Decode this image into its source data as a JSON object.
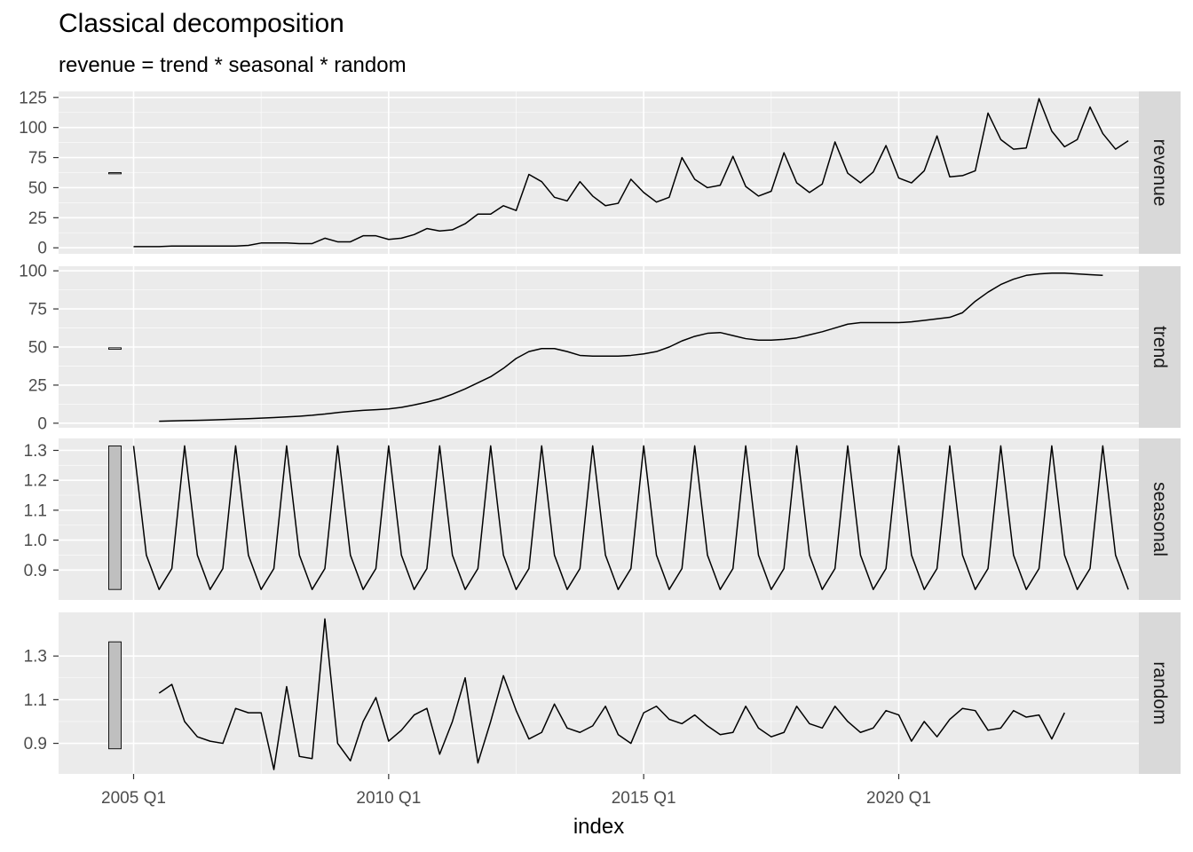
{
  "title": "Classical decomposition",
  "subtitle": "revenue = trend * seasonal * random",
  "chart_data": {
    "type": "line",
    "title": "Classical decomposition",
    "subtitle": "revenue = trend * seasonal * random",
    "xlabel": "index",
    "x_ticks": [
      "2005 Q1",
      "2010 Q1",
      "2015 Q1",
      "2020 Q1"
    ],
    "x_tick_values": [
      2005.0,
      2010.0,
      2015.0,
      2020.0
    ],
    "xlim": [
      2003.6,
      2025.2
    ],
    "x_start": 2005.0,
    "x_step": 0.25,
    "colors": {
      "line": "#000000",
      "panel": "#ebebeb",
      "strip": "#d9d9d9",
      "grid": "#ffffff",
      "range_bar": "#bfbfbf"
    },
    "panels": [
      {
        "name": "revenue",
        "ylim": [
          -5,
          130
        ],
        "y_ticks": [
          0,
          25,
          50,
          75,
          100,
          125
        ],
        "range_bar": [
          61.5,
          62.5
        ],
        "values": [
          1,
          1,
          1,
          1.5,
          1.5,
          1.5,
          1.5,
          1.5,
          1.5,
          2,
          4,
          4,
          4,
          3.5,
          3.5,
          8,
          5,
          5,
          10,
          10,
          7,
          8,
          11,
          16,
          14,
          15,
          20,
          28,
          28,
          35,
          31,
          61,
          55,
          42,
          39,
          55,
          43,
          35,
          37,
          57,
          46,
          38,
          42,
          75,
          57,
          50,
          52,
          76,
          51,
          43,
          47,
          79,
          54,
          46,
          53,
          88,
          62,
          54,
          63,
          85,
          58,
          54,
          64,
          93,
          59,
          60,
          64,
          112,
          90,
          82,
          83,
          124,
          97,
          84,
          90,
          117,
          95,
          82,
          89
        ]
      },
      {
        "name": "trend",
        "ylim": [
          -3,
          103
        ],
        "y_ticks": [
          0,
          25,
          50,
          75,
          100
        ],
        "range_bar": [
          48.5,
          49.5
        ],
        "values": [
          null,
          null,
          1.3,
          1.5,
          1.7,
          1.9,
          2.1,
          2.4,
          2.7,
          3.0,
          3.3,
          3.7,
          4.1,
          4.6,
          5.2,
          6.0,
          7.0,
          7.8,
          8.4,
          8.9,
          9.4,
          10.4,
          12.0,
          13.8,
          16.0,
          19.0,
          22.5,
          26.5,
          30.5,
          36.0,
          42.5,
          47.0,
          49.0,
          49.0,
          47.0,
          44.5,
          44.0,
          44.0,
          44.0,
          44.5,
          45.5,
          47.0,
          50.0,
          54.0,
          57.0,
          59.0,
          59.5,
          57.5,
          55.5,
          54.5,
          54.5,
          55.0,
          56.0,
          58.0,
          60.0,
          62.5,
          65.0,
          66.0,
          66.0,
          66.0,
          66.0,
          66.5,
          67.5,
          68.5,
          69.5,
          72.5,
          80.0,
          86.0,
          91.0,
          94.5,
          97.0,
          98.0,
          98.5,
          98.5,
          98.0,
          97.5,
          97.0,
          null,
          null
        ]
      },
      {
        "name": "seasonal",
        "ylim": [
          0.8,
          1.34
        ],
        "y_ticks": [
          0.9,
          1.0,
          1.1,
          1.2,
          1.3
        ],
        "y_tick_labels": [
          "0.9",
          "1.0",
          "1.1",
          "1.2",
          "1.3"
        ],
        "range_bar": [
          0.835,
          1.315
        ],
        "pattern": [
          1.315,
          0.95,
          0.835,
          0.905
        ],
        "n": 79
      },
      {
        "name": "random",
        "ylim": [
          0.76,
          1.5
        ],
        "y_ticks": [
          0.9,
          1.1,
          1.3
        ],
        "y_tick_labels": [
          "0.9",
          "1.1",
          "1.3"
        ],
        "range_bar": [
          0.875,
          1.365
        ],
        "values": [
          null,
          null,
          1.13,
          1.17,
          1.0,
          0.93,
          0.91,
          0.9,
          1.06,
          1.04,
          1.04,
          0.78,
          1.16,
          0.84,
          0.83,
          1.47,
          0.9,
          0.82,
          1.0,
          1.11,
          0.91,
          0.96,
          1.03,
          1.06,
          0.85,
          1.0,
          1.2,
          0.81,
          1.0,
          1.21,
          1.05,
          0.92,
          0.95,
          1.08,
          0.97,
          0.95,
          0.98,
          1.07,
          0.94,
          0.9,
          1.04,
          1.07,
          1.01,
          0.99,
          1.03,
          0.98,
          0.94,
          0.95,
          1.07,
          0.97,
          0.93,
          0.95,
          1.07,
          0.99,
          0.97,
          1.07,
          1.0,
          0.95,
          0.97,
          1.05,
          1.03,
          0.91,
          1.0,
          0.93,
          1.01,
          1.06,
          1.05,
          0.96,
          0.97,
          1.05,
          1.02,
          1.03,
          0.92,
          1.04,
          null,
          null,
          null,
          null,
          null
        ]
      }
    ]
  }
}
